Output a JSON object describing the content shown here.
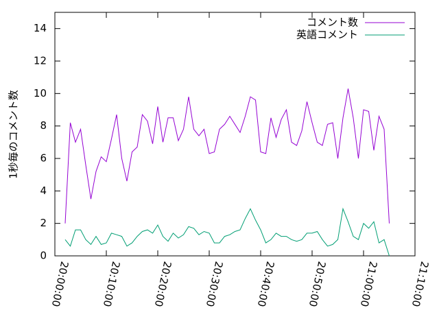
{
  "chart_data": {
    "type": "line",
    "y_label": "1秒毎のコメント数",
    "x": [
      "20:02:00",
      "20:03:00",
      "20:04:00",
      "20:05:00",
      "20:06:00",
      "20:07:00",
      "20:08:00",
      "20:09:00",
      "20:10:00",
      "20:11:00",
      "20:12:00",
      "20:13:00",
      "20:14:00",
      "20:15:00",
      "20:16:00",
      "20:17:00",
      "20:18:00",
      "20:19:00",
      "20:20:00",
      "20:21:00",
      "20:22:00",
      "20:23:00",
      "20:24:00",
      "20:25:00",
      "20:26:00",
      "20:27:00",
      "20:28:00",
      "20:29:00",
      "20:30:00",
      "20:31:00",
      "20:32:00",
      "20:33:00",
      "20:34:00",
      "20:35:00",
      "20:36:00",
      "20:37:00",
      "20:38:00",
      "20:39:00",
      "20:40:00",
      "20:41:00",
      "20:42:00",
      "20:43:00",
      "20:44:00",
      "20:45:00",
      "20:46:00",
      "20:47:00",
      "20:48:00",
      "20:49:00",
      "20:50:00",
      "20:51:00",
      "20:52:00",
      "20:53:00",
      "20:54:00",
      "20:55:00",
      "20:56:00",
      "20:57:00",
      "20:58:00",
      "20:59:00",
      "21:00:00",
      "21:01:00",
      "21:02:00",
      "21:03:00",
      "21:04:00",
      "21:05:00"
    ],
    "series": [
      {
        "name": "コメント数",
        "color": "#9400d3",
        "values": [
          2.0,
          8.2,
          7.0,
          7.8,
          5.6,
          3.5,
          5.2,
          6.1,
          5.8,
          7.2,
          8.7,
          6.0,
          4.6,
          6.4,
          6.7,
          8.7,
          8.3,
          6.9,
          9.2,
          7.0,
          8.5,
          8.5,
          7.1,
          7.8,
          9.8,
          7.8,
          7.4,
          7.8,
          6.3,
          6.4,
          7.8,
          8.1,
          8.6,
          8.1,
          7.6,
          8.6,
          9.8,
          9.6,
          6.4,
          6.3,
          8.5,
          7.3,
          8.4,
          9.0,
          7.0,
          6.8,
          7.7,
          9.5,
          8.2,
          7.0,
          6.8,
          8.1,
          8.2,
          6.0,
          8.5,
          10.3,
          8.5,
          6.0,
          9.0,
          8.9,
          6.5,
          8.6,
          7.8,
          2.0
        ]
      },
      {
        "name": "英語コメント",
        "color": "#009e73",
        "values": [
          1.0,
          0.6,
          1.6,
          1.6,
          1.0,
          0.7,
          1.2,
          0.7,
          0.8,
          1.4,
          1.3,
          1.2,
          0.6,
          0.8,
          1.2,
          1.5,
          1.6,
          1.4,
          1.9,
          1.2,
          0.9,
          1.4,
          1.1,
          1.3,
          1.8,
          1.7,
          1.3,
          1.5,
          1.4,
          0.8,
          0.8,
          1.2,
          1.3,
          1.5,
          1.6,
          2.3,
          2.9,
          2.2,
          1.6,
          0.8,
          1.0,
          1.4,
          1.2,
          1.2,
          1.0,
          0.9,
          1.0,
          1.4,
          1.4,
          1.5,
          1.0,
          0.6,
          0.7,
          1.0,
          2.9,
          2.1,
          1.2,
          1.0,
          2.0,
          1.7,
          2.1,
          0.8,
          1.0,
          0.0
        ]
      }
    ],
    "xlim": [
      "20:00:00",
      "21:10:00"
    ],
    "xticks": [
      "20:00:00",
      "20:10:00",
      "20:20:00",
      "20:30:00",
      "20:40:00",
      "20:50:00",
      "21:00:00",
      "21:10:00"
    ],
    "ylim": [
      0,
      15
    ],
    "yticks": [
      0,
      2,
      4,
      6,
      8,
      10,
      12,
      14
    ],
    "legend": "top-right"
  }
}
